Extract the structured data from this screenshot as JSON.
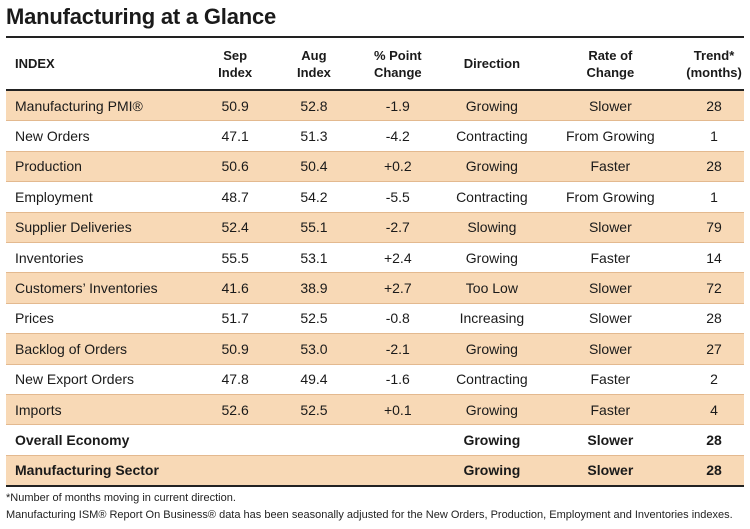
{
  "title": "Manufacturing at a Glance",
  "headers": {
    "index": "INDEX",
    "sep_1": "Sep",
    "sep_2": "Index",
    "aug_1": "Aug",
    "aug_2": "Index",
    "pct_1": "% Point",
    "pct_2": "Change",
    "direction": "Direction",
    "rate_1": "Rate of",
    "rate_2": "Change",
    "trend_1": "Trend*",
    "trend_2": "(months)"
  },
  "rows": [
    [
      "Manufacturing PMI®",
      "50.9",
      "52.8",
      "-1.9",
      "Growing",
      "Slower",
      "28"
    ],
    [
      "New Orders",
      "47.1",
      "51.3",
      "-4.2",
      "Contracting",
      "From Growing",
      "1"
    ],
    [
      "Production",
      "50.6",
      "50.4",
      "+0.2",
      "Growing",
      "Faster",
      "28"
    ],
    [
      "Employment",
      "48.7",
      "54.2",
      "-5.5",
      "Contracting",
      "From Growing",
      "1"
    ],
    [
      "Supplier Deliveries",
      "52.4",
      "55.1",
      "-2.7",
      "Slowing",
      "Slower",
      "79"
    ],
    [
      "Inventories",
      "55.5",
      "53.1",
      "+2.4",
      "Growing",
      "Faster",
      "14"
    ],
    [
      "Customers’ Inventories",
      "41.6",
      "38.9",
      "+2.7",
      "Too Low",
      "Slower",
      "72"
    ],
    [
      "Prices",
      "51.7",
      "52.5",
      "-0.8",
      "Increasing",
      "Slower",
      "28"
    ],
    [
      "Backlog of Orders",
      "50.9",
      "53.0",
      "-2.1",
      "Growing",
      "Slower",
      "27"
    ],
    [
      "New Export Orders",
      "47.8",
      "49.4",
      "-1.6",
      "Contracting",
      "Faster",
      "2"
    ],
    [
      "Imports",
      "52.6",
      "52.5",
      "+0.1",
      "Growing",
      "Faster",
      "4"
    ],
    [
      "Overall Economy",
      "",
      "",
      "",
      "Growing",
      "Slower",
      "28"
    ],
    [
      "Manufacturing Sector",
      "",
      "",
      "",
      "Growing",
      "Slower",
      "28"
    ]
  ],
  "footnote_1": "*Number of months moving in current direction.",
  "footnote_2": "Manufacturing ISM® Report On Business® data has been seasonally adjusted for the New Orders, Production, Employment and Inventories indexes."
}
